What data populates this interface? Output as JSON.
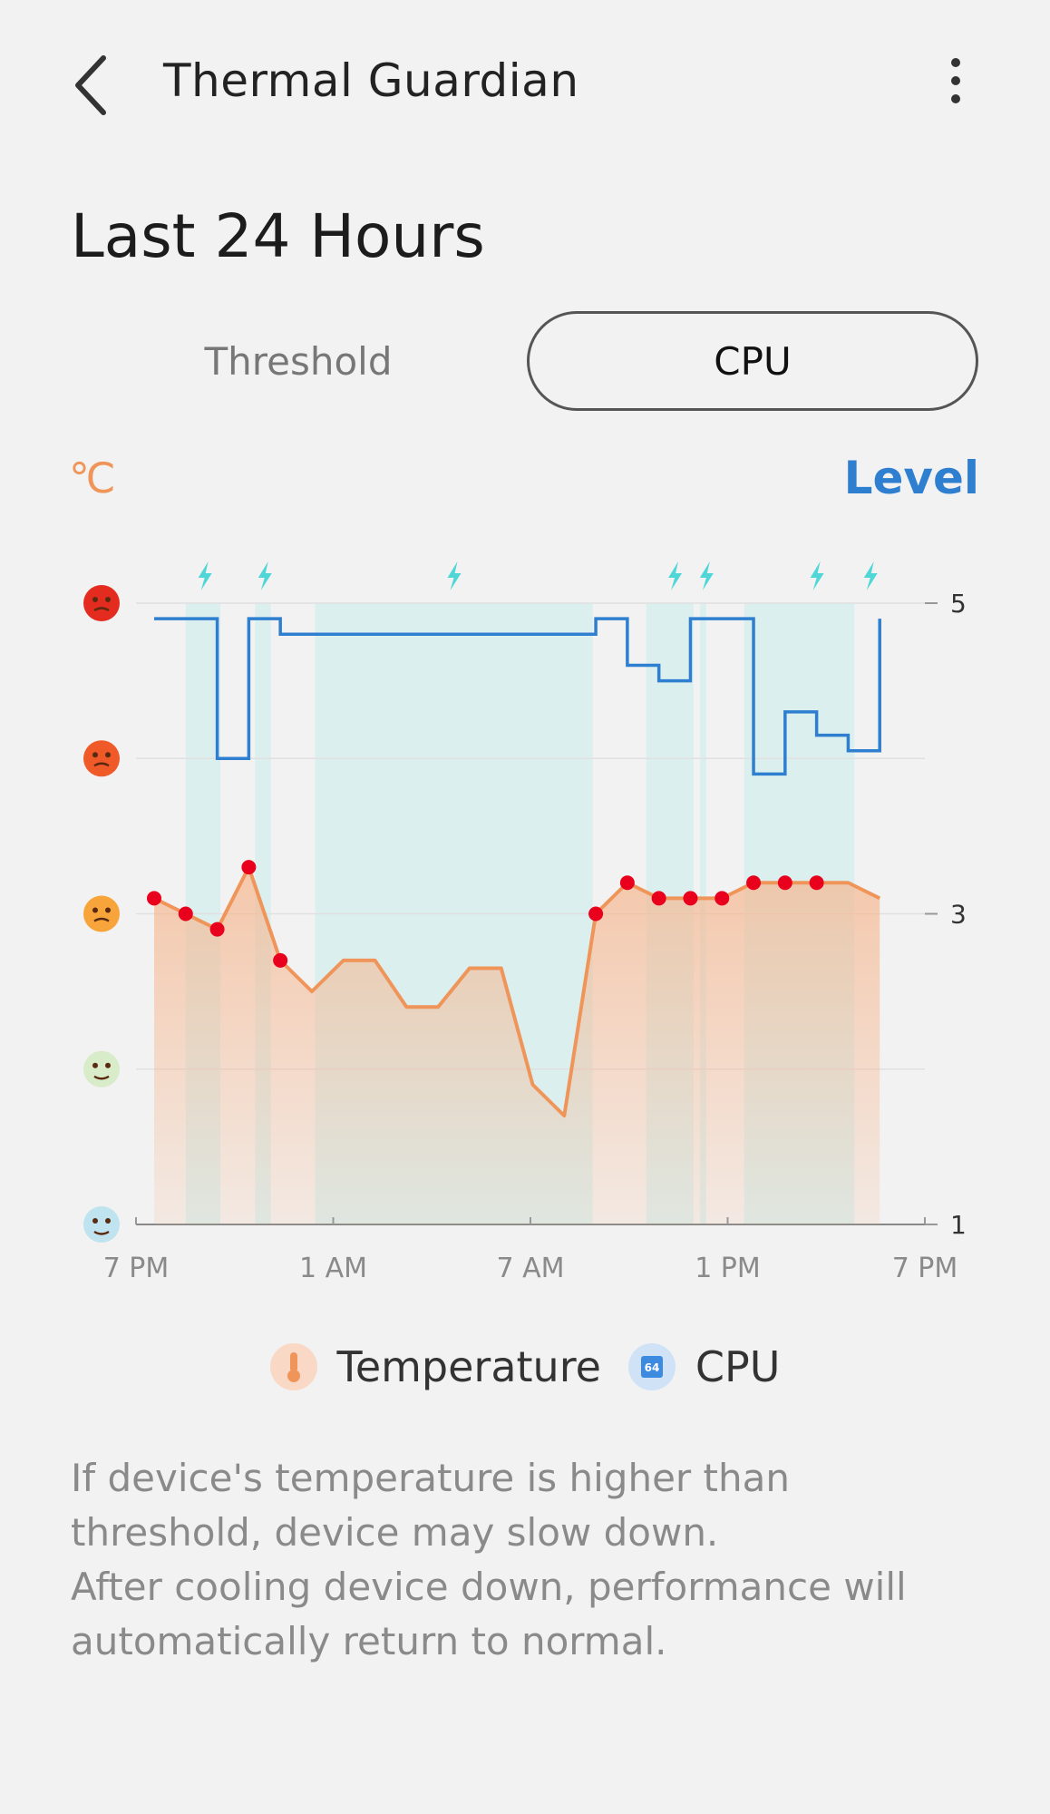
{
  "header": {
    "title": "Thermal Guardian",
    "back_icon": "chevron-left-icon",
    "more_icon": "more-vertical-icon"
  },
  "page_title": "Last 24 Hours",
  "tabs": [
    {
      "label": "Threshold",
      "selected": false
    },
    {
      "label": "CPU",
      "selected": true
    }
  ],
  "axis_labels": {
    "left": "℃",
    "right": "Level"
  },
  "colors": {
    "temperature": "#f0955a",
    "cpu": "#2f7fd0",
    "highlight": "#d7efee",
    "bolt": "#4fd6d6",
    "point": "#e8001c"
  },
  "chart_data": {
    "type": "line",
    "x_ticks": [
      "7 PM",
      "1 AM",
      "7 AM",
      "1 PM",
      "7 PM"
    ],
    "y_right_ticks": [
      "5",
      "3",
      "1"
    ],
    "y_left_icons": [
      "dizzy-face-icon",
      "hot-face-icon",
      "sweaty-face-icon",
      "happy-face-icon",
      "cold-face-icon"
    ],
    "x_range": [
      0,
      24
    ],
    "y_range": [
      1,
      5
    ],
    "series": [
      {
        "name": "Temperature",
        "kind": "area",
        "points": [
          [
            0,
            3.1
          ],
          [
            1,
            3.0
          ],
          [
            2,
            2.9
          ],
          [
            3,
            3.3
          ],
          [
            4,
            2.7
          ],
          [
            5,
            2.5
          ],
          [
            6,
            2.7
          ],
          [
            7,
            2.7
          ],
          [
            8,
            2.4
          ],
          [
            9,
            2.4
          ],
          [
            10,
            2.65
          ],
          [
            11,
            2.65
          ],
          [
            12,
            1.9
          ],
          [
            13,
            1.7
          ],
          [
            14,
            3.0
          ],
          [
            15,
            3.2
          ],
          [
            16,
            3.1
          ],
          [
            17,
            3.1
          ],
          [
            18,
            3.1
          ],
          [
            19,
            3.2
          ],
          [
            20,
            3.2
          ],
          [
            21,
            3.2
          ],
          [
            22,
            3.2
          ],
          [
            23,
            3.1
          ]
        ],
        "markers": [
          0,
          1,
          2,
          3,
          4,
          14,
          15,
          16,
          17,
          18,
          19,
          20,
          21
        ]
      },
      {
        "name": "CPU",
        "kind": "step",
        "points": [
          [
            0,
            4.9
          ],
          [
            2,
            4.9
          ],
          [
            2,
            4.0
          ],
          [
            3,
            4.0
          ],
          [
            3,
            4.9
          ],
          [
            4,
            4.9
          ],
          [
            4,
            4.8
          ],
          [
            14,
            4.8
          ],
          [
            14,
            4.9
          ],
          [
            15,
            4.9
          ],
          [
            15,
            4.6
          ],
          [
            16,
            4.6
          ],
          [
            16,
            4.5
          ],
          [
            17,
            4.5
          ],
          [
            17,
            4.9
          ],
          [
            19,
            4.9
          ],
          [
            19,
            3.9
          ],
          [
            20,
            3.9
          ],
          [
            20,
            4.3
          ],
          [
            21,
            4.3
          ],
          [
            21,
            4.15
          ],
          [
            22,
            4.15
          ],
          [
            22,
            4.05
          ],
          [
            23,
            4.05
          ],
          [
            23,
            4.9
          ]
        ]
      }
    ],
    "highlight_bands": [
      [
        1,
        2.1
      ],
      [
        3.2,
        3.7
      ],
      [
        5.1,
        13.9
      ],
      [
        15.6,
        17.1
      ],
      [
        17.3,
        17.5
      ],
      [
        18.7,
        22.2
      ]
    ],
    "bolt_markers_x": [
      1.6,
      3.5,
      9.5,
      16.5,
      17.5,
      21,
      22.7
    ],
    "legend": [
      "Temperature",
      "CPU"
    ],
    "grid": true
  },
  "legend": {
    "temperature_label": "Temperature",
    "temperature_icon": "thermometer-icon",
    "cpu_label": "CPU",
    "cpu_icon": "cpu-chip-icon",
    "cpu_icon_text": "64"
  },
  "note": {
    "line1": "If device's temperature is higher than threshold, device may slow down.",
    "line2": "After cooling device down, performance will automatically return to normal."
  }
}
